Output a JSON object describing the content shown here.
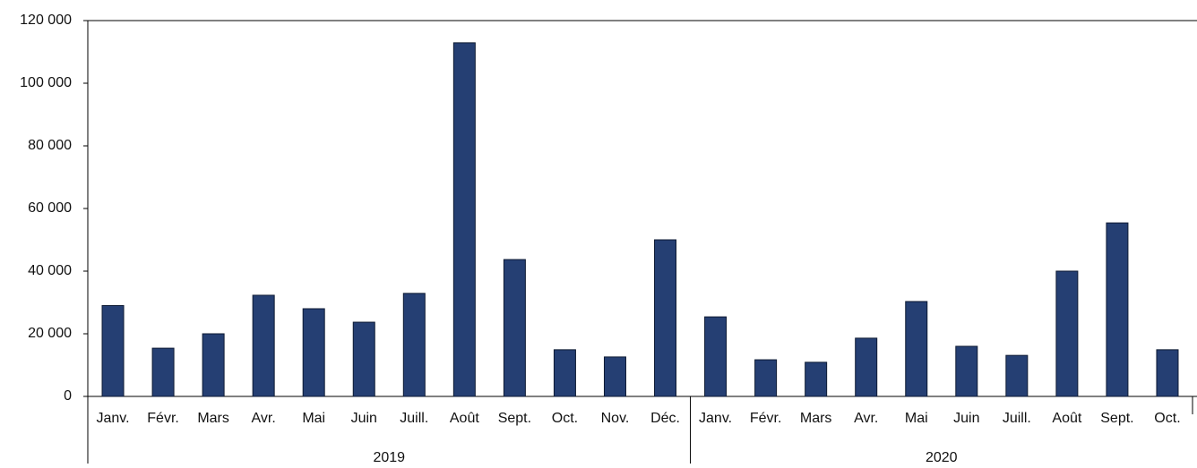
{
  "chart_data": {
    "type": "bar",
    "groups": [
      {
        "label": "2019",
        "categories": [
          "Janv.",
          "Févr.",
          "Mars",
          "Avr.",
          "Mai",
          "Juin",
          "Juill.",
          "Août",
          "Sept.",
          "Oct.",
          "Nov.",
          "Déc."
        ]
      },
      {
        "label": "2020",
        "categories": [
          "Janv.",
          "Févr.",
          "Mars",
          "Avr.",
          "Mai",
          "Juin",
          "Juill.",
          "Août",
          "Sept.",
          "Oct."
        ]
      }
    ],
    "values": [
      29000,
      15400,
      20000,
      32300,
      28000,
      23700,
      32900,
      112900,
      43700,
      14900,
      12600,
      50000,
      25400,
      11700,
      10900,
      18600,
      30300,
      16000,
      13100,
      40000,
      55400,
      14900
    ],
    "color": "#253f73",
    "ylim": [
      0,
      120000
    ],
    "yticks": [
      0,
      {
        "value": 20000,
        "label": "20 000"
      },
      {
        "value": 40000,
        "label": "40 000"
      },
      {
        "value": 60000,
        "label": "60 000"
      },
      {
        "value": 80000,
        "label": "80 000"
      },
      {
        "value": 100000,
        "label": "100 000"
      },
      {
        "value": 120000,
        "label": "120 000"
      }
    ]
  }
}
